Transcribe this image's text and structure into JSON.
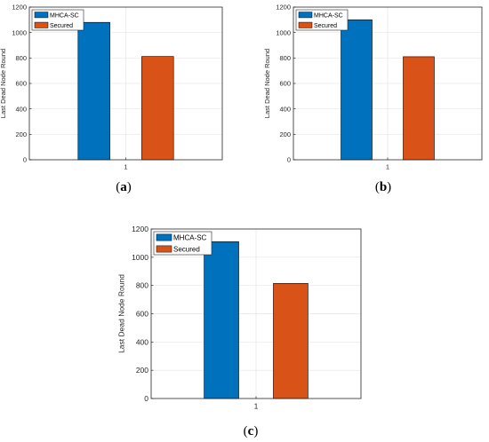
{
  "colors": {
    "mhca": "#0072BD",
    "secured": "#D95319",
    "grid": "#e6e6e6",
    "axis": "#262626"
  },
  "chart_data": [
    {
      "type": "bar",
      "categories": [
        "1"
      ],
      "ylabel": "Last Dead Node Round",
      "xlabel": "",
      "ylim": [
        0,
        1200
      ],
      "yticks": [
        0,
        200,
        400,
        600,
        800,
        1000,
        1200
      ],
      "grid": true,
      "legend_position": "top-left",
      "series": [
        {
          "name": "MHCA-SC",
          "values": [
            1080
          ]
        },
        {
          "name": "Secured",
          "values": [
            812
          ]
        }
      ],
      "caption": {
        "open": "(",
        "letter": "a",
        "close": ")"
      }
    },
    {
      "type": "bar",
      "categories": [
        "1"
      ],
      "ylabel": "Last Dead Node Round",
      "xlabel": "",
      "ylim": [
        0,
        1200
      ],
      "yticks": [
        0,
        200,
        400,
        600,
        800,
        1000,
        1200
      ],
      "grid": true,
      "legend_position": "top-left",
      "series": [
        {
          "name": "MHCA-SC",
          "values": [
            1100
          ]
        },
        {
          "name": "Secured",
          "values": [
            810
          ]
        }
      ],
      "caption": {
        "open": "(",
        "letter": "b",
        "close": ")"
      }
    },
    {
      "type": "bar",
      "categories": [
        "1"
      ],
      "ylabel": "Last Dead Node Round",
      "xlabel": "",
      "ylim": [
        0,
        1200
      ],
      "yticks": [
        0,
        200,
        400,
        600,
        800,
        1000,
        1200
      ],
      "grid": true,
      "legend_position": "top-left",
      "series": [
        {
          "name": "MHCA-SC",
          "values": [
            1110
          ]
        },
        {
          "name": "Secured",
          "values": [
            815
          ]
        }
      ],
      "caption": {
        "open": "(",
        "letter": "c",
        "close": ")"
      }
    }
  ]
}
